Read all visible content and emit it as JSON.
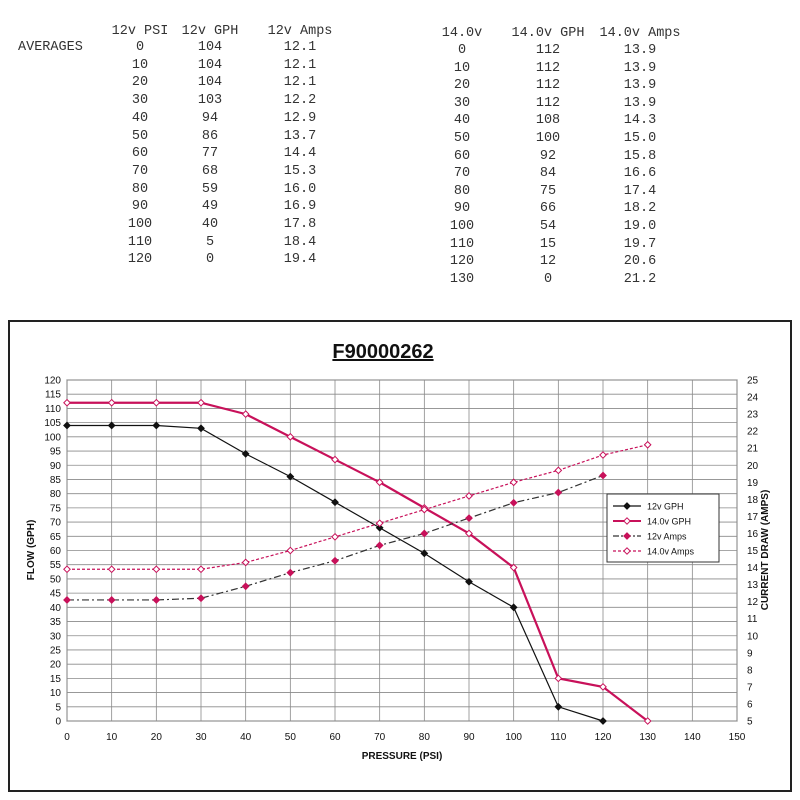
{
  "table12": {
    "averages_label": "AVERAGES",
    "headers": [
      "12v PSI",
      "12v GPH",
      "12v Amps"
    ],
    "rows": [
      [
        "0",
        "104",
        "12.1"
      ],
      [
        "10",
        "104",
        "12.1"
      ],
      [
        "20",
        "104",
        "12.1"
      ],
      [
        "30",
        "103",
        "12.2"
      ],
      [
        "40",
        "94",
        "12.9"
      ],
      [
        "50",
        "86",
        "13.7"
      ],
      [
        "60",
        "77",
        "14.4"
      ],
      [
        "70",
        "68",
        "15.3"
      ],
      [
        "80",
        "59",
        "16.0"
      ],
      [
        "90",
        "49",
        "16.9"
      ],
      [
        "100",
        "40",
        "17.8"
      ],
      [
        "110",
        "5",
        "18.4"
      ],
      [
        "120",
        "0",
        "19.4"
      ]
    ]
  },
  "table14": {
    "headers": [
      "14.0v",
      "14.0v GPH",
      "14.0v Amps"
    ],
    "rows": [
      [
        "0",
        "112",
        "13.9"
      ],
      [
        "10",
        "112",
        "13.9"
      ],
      [
        "20",
        "112",
        "13.9"
      ],
      [
        "30",
        "112",
        "13.9"
      ],
      [
        "40",
        "108",
        "14.3"
      ],
      [
        "50",
        "100",
        "15.0"
      ],
      [
        "60",
        "92",
        "15.8"
      ],
      [
        "70",
        "84",
        "16.6"
      ],
      [
        "80",
        "75",
        "17.4"
      ],
      [
        "90",
        "66",
        "18.2"
      ],
      [
        "100",
        "54",
        "19.0"
      ],
      [
        "110",
        "15",
        "19.7"
      ],
      [
        "120",
        "12",
        "20.6"
      ],
      [
        "130",
        "0",
        "21.2"
      ]
    ]
  },
  "chart_data": {
    "type": "line",
    "title": "F90000262",
    "xlabel": "PRESSURE (PSI)",
    "ylabel": "FLOW (GPH)",
    "y2label": "CURRENT DRAW (AMPS)",
    "xlim": [
      0,
      150
    ],
    "ylim": [
      0,
      120
    ],
    "y2lim": [
      5,
      25
    ],
    "xticks": [
      0,
      10,
      20,
      30,
      40,
      50,
      60,
      70,
      80,
      90,
      100,
      110,
      120,
      130,
      140,
      150
    ],
    "yticks": [
      0,
      5,
      10,
      15,
      20,
      25,
      30,
      35,
      40,
      45,
      50,
      55,
      60,
      65,
      70,
      75,
      80,
      85,
      90,
      95,
      100,
      105,
      110,
      115,
      120
    ],
    "y2ticks": [
      5,
      6,
      7,
      8,
      9,
      10,
      11,
      12,
      13,
      14,
      15,
      16,
      17,
      18,
      19,
      20,
      21,
      22,
      23,
      24,
      25
    ],
    "grid": true,
    "legend_position": "right",
    "series": [
      {
        "name": "12v GPH",
        "axis": "left",
        "color": "#111111",
        "style": "solid",
        "marker": "diamond-filled",
        "x": [
          0,
          10,
          20,
          30,
          40,
          50,
          60,
          70,
          80,
          90,
          100,
          110,
          120
        ],
        "y": [
          104,
          104,
          104,
          103,
          94,
          86,
          77,
          68,
          59,
          49,
          40,
          5,
          0
        ]
      },
      {
        "name": "14.0v GPH",
        "axis": "left",
        "color": "#c8115a",
        "style": "solid-bold",
        "marker": "diamond-open",
        "x": [
          0,
          10,
          20,
          30,
          40,
          50,
          60,
          70,
          80,
          90,
          100,
          110,
          120,
          130
        ],
        "y": [
          112,
          112,
          112,
          112,
          108,
          100,
          92,
          84,
          75,
          66,
          54,
          15,
          12,
          0
        ]
      },
      {
        "name": "12v Amps",
        "axis": "right",
        "color": "#333333",
        "style": "dashdot",
        "marker": "diamond-pink",
        "x": [
          0,
          10,
          20,
          30,
          40,
          50,
          60,
          70,
          80,
          90,
          100,
          110,
          120
        ],
        "y": [
          12.1,
          12.1,
          12.1,
          12.2,
          12.9,
          13.7,
          14.4,
          15.3,
          16.0,
          16.9,
          17.8,
          18.4,
          19.4
        ]
      },
      {
        "name": "14.0v Amps",
        "axis": "right",
        "color": "#c8115a",
        "style": "dashed",
        "marker": "diamond-open",
        "x": [
          0,
          10,
          20,
          30,
          40,
          50,
          60,
          70,
          80,
          90,
          100,
          110,
          120,
          130
        ],
        "y": [
          13.9,
          13.9,
          13.9,
          13.9,
          14.3,
          15.0,
          15.8,
          16.6,
          17.4,
          18.2,
          19.0,
          19.7,
          20.6,
          21.2
        ]
      }
    ]
  }
}
